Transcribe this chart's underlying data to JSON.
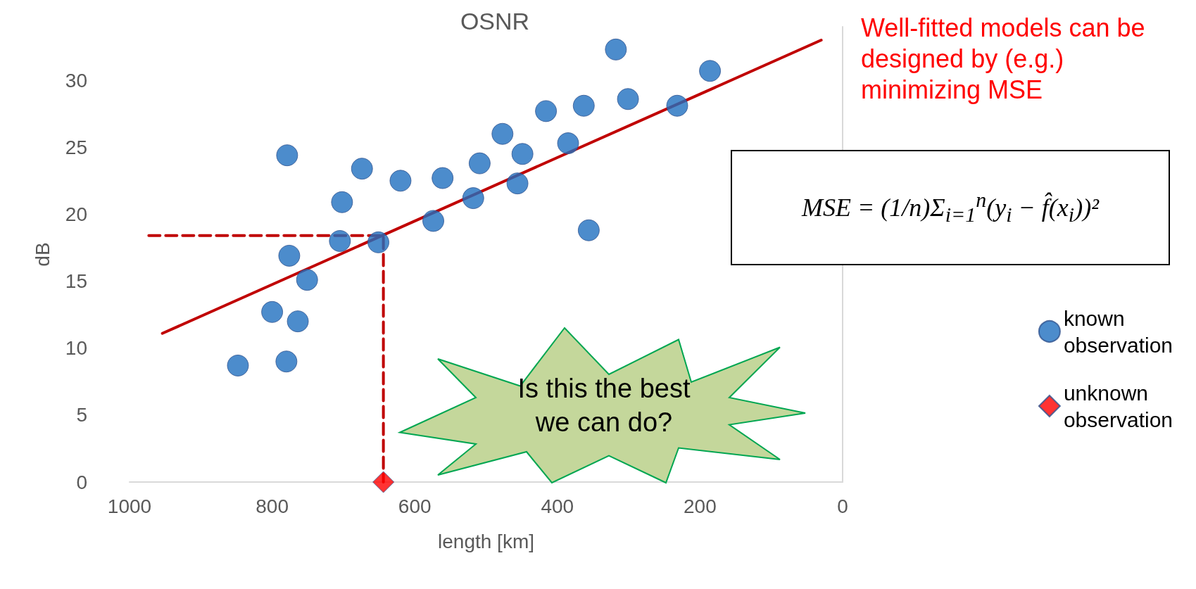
{
  "chart_data": {
    "type": "scatter",
    "title": "OSNR",
    "xlabel": "length [km]",
    "ylabel": "dB",
    "xlim": [
      1000,
      0
    ],
    "xticks": [
      1000,
      800,
      600,
      400,
      200,
      0
    ],
    "ylim": [
      0,
      34
    ],
    "yticks": [
      0,
      5,
      10,
      15,
      20,
      25,
      30
    ],
    "legend": "right",
    "series": [
      {
        "name": "known observation",
        "color": "#1f6fbf",
        "marker": "circle",
        "x": [
          848,
          780,
          800,
          764,
          751,
          776,
          779,
          702,
          705,
          674,
          651,
          620,
          574,
          561,
          518,
          509,
          477,
          456,
          449,
          416,
          385,
          363,
          356,
          318,
          301,
          232,
          186
        ],
        "values": [
          8.7,
          9.0,
          12.7,
          12.0,
          15.1,
          16.9,
          24.4,
          20.9,
          18.0,
          23.4,
          17.9,
          22.5,
          19.5,
          22.7,
          21.2,
          23.8,
          26.0,
          22.3,
          24.5,
          27.7,
          25.3,
          28.1,
          18.8,
          32.3,
          28.6,
          28.1,
          30.7
        ]
      },
      {
        "name": "unknown observation",
        "color": "#ff0000",
        "marker": "diamond",
        "x": [
          644
        ],
        "values": [
          0
        ]
      },
      {
        "type": "line",
        "color": "#c00000",
        "x": [
          954,
          30
        ],
        "values": [
          11.1,
          33.0
        ]
      },
      {
        "type": "line",
        "color": "#c00000",
        "line_style": "dashed",
        "x": [
          973,
          644,
          644
        ],
        "values": [
          18.4,
          18.4,
          0
        ]
      }
    ],
    "annotations": [
      "Well-fitted models can be designed by (e.g.) minimizing MSE",
      "MSE = (1/n)Σ$_{i=1}$$^{n}$(y$_{i}$ − f̂(x$_{i}$))²",
      "Is this the best we can do?"
    ]
  }
}
